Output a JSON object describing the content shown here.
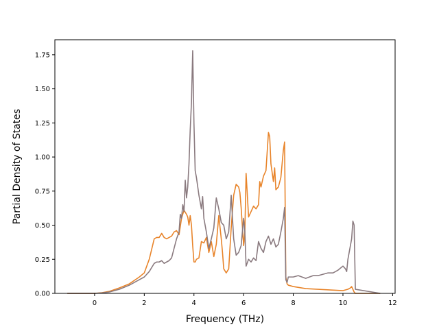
{
  "chart_data": {
    "type": "line",
    "title": "",
    "xlabel": "Frequency (THz)",
    "ylabel": "Partial Density of States",
    "xlim": [
      -1.6,
      12.1
    ],
    "ylim": [
      0,
      1.86
    ],
    "xticks": [
      0,
      2,
      4,
      6,
      8,
      10,
      12
    ],
    "xtick_labels": [
      "0",
      "2",
      "4",
      "6",
      "8",
      "10",
      "12"
    ],
    "yticks": [
      0.0,
      0.25,
      0.5,
      0.75,
      1.0,
      1.25,
      1.5,
      1.75
    ],
    "ytick_labels": [
      "0.00",
      "0.25",
      "0.50",
      "0.75",
      "1.00",
      "1.25",
      "1.50",
      "1.75"
    ],
    "grid": false,
    "legend": "none",
    "series": [
      {
        "color": "#e8842a",
        "x": [
          -1.1,
          0,
          0.3,
          0.6,
          1.0,
          1.4,
          1.8,
          2.0,
          2.2,
          2.4,
          2.5,
          2.6,
          2.7,
          2.8,
          2.9,
          3.0,
          3.1,
          3.2,
          3.3,
          3.4,
          3.5,
          3.6,
          3.7,
          3.75,
          3.8,
          3.85,
          3.9,
          3.95,
          4.0,
          4.05,
          4.1,
          4.2,
          4.3,
          4.4,
          4.5,
          4.6,
          4.7,
          4.8,
          4.9,
          5.0,
          5.1,
          5.15,
          5.2,
          5.3,
          5.4,
          5.5,
          5.6,
          5.7,
          5.8,
          5.85,
          5.9,
          6.0,
          6.05,
          6.1,
          6.2,
          6.3,
          6.4,
          6.5,
          6.6,
          6.65,
          6.7,
          6.8,
          6.9,
          7.0,
          7.05,
          7.1,
          7.2,
          7.25,
          7.3,
          7.35,
          7.4,
          7.5,
          7.6,
          7.65,
          7.7,
          7.75,
          7.8,
          8.0,
          8.5,
          9.0,
          9.5,
          10.0,
          10.2,
          10.3,
          10.35,
          10.4,
          10.45,
          10.5,
          11.5
        ],
        "y": [
          0,
          0,
          0.005,
          0.015,
          0.04,
          0.07,
          0.12,
          0.15,
          0.25,
          0.4,
          0.41,
          0.41,
          0.44,
          0.41,
          0.4,
          0.41,
          0.42,
          0.45,
          0.46,
          0.43,
          0.55,
          0.61,
          0.58,
          0.56,
          0.5,
          0.57,
          0.5,
          0.35,
          0.23,
          0.23,
          0.25,
          0.26,
          0.38,
          0.37,
          0.41,
          0.3,
          0.38,
          0.27,
          0.36,
          0.57,
          0.4,
          0.3,
          0.18,
          0.15,
          0.18,
          0.48,
          0.72,
          0.8,
          0.78,
          0.74,
          0.63,
          0.35,
          0.45,
          0.88,
          0.56,
          0.6,
          0.64,
          0.62,
          0.65,
          0.82,
          0.78,
          0.86,
          0.9,
          1.18,
          1.15,
          0.95,
          0.82,
          0.92,
          0.76,
          0.77,
          0.78,
          0.85,
          1.05,
          1.11,
          0.12,
          0.07,
          0.06,
          0.05,
          0.035,
          0.03,
          0.025,
          0.02,
          0.03,
          0.04,
          0.05,
          0.03,
          0.01,
          0,
          0
        ]
      },
      {
        "color": "#8a7a7f",
        "x": [
          -1.1,
          0,
          0.3,
          0.6,
          1.0,
          1.4,
          1.8,
          2.0,
          2.2,
          2.4,
          2.5,
          2.6,
          2.7,
          2.8,
          2.9,
          3.0,
          3.1,
          3.2,
          3.3,
          3.4,
          3.45,
          3.5,
          3.55,
          3.6,
          3.65,
          3.7,
          3.75,
          3.8,
          3.85,
          3.9,
          3.95,
          4.0,
          4.05,
          4.1,
          4.2,
          4.3,
          4.35,
          4.4,
          4.5,
          4.6,
          4.7,
          4.8,
          4.9,
          5.0,
          5.1,
          5.2,
          5.3,
          5.4,
          5.5,
          5.6,
          5.7,
          5.8,
          5.9,
          6.0,
          6.05,
          6.1,
          6.2,
          6.3,
          6.4,
          6.5,
          6.6,
          6.7,
          6.8,
          6.9,
          7.0,
          7.1,
          7.2,
          7.3,
          7.4,
          7.5,
          7.6,
          7.65,
          7.7,
          7.75,
          7.8,
          8.0,
          8.2,
          8.5,
          8.8,
          9.0,
          9.2,
          9.4,
          9.6,
          9.8,
          10.0,
          10.1,
          10.15,
          10.2,
          10.25,
          10.3,
          10.35,
          10.4,
          10.45,
          10.5,
          11.5
        ],
        "y": [
          0,
          0,
          0.003,
          0.01,
          0.03,
          0.06,
          0.1,
          0.12,
          0.16,
          0.22,
          0.23,
          0.23,
          0.24,
          0.22,
          0.23,
          0.24,
          0.26,
          0.33,
          0.4,
          0.45,
          0.58,
          0.55,
          0.65,
          0.6,
          0.83,
          0.7,
          0.78,
          0.95,
          1.2,
          1.4,
          1.78,
          1.25,
          0.9,
          0.85,
          0.72,
          0.62,
          0.71,
          0.55,
          0.45,
          0.33,
          0.4,
          0.48,
          0.7,
          0.62,
          0.52,
          0.5,
          0.4,
          0.45,
          0.72,
          0.4,
          0.28,
          0.3,
          0.35,
          0.55,
          0.45,
          0.2,
          0.25,
          0.23,
          0.26,
          0.24,
          0.38,
          0.33,
          0.3,
          0.38,
          0.42,
          0.36,
          0.4,
          0.34,
          0.36,
          0.45,
          0.55,
          0.63,
          0.1,
          0.08,
          0.12,
          0.12,
          0.13,
          0.11,
          0.13,
          0.13,
          0.14,
          0.15,
          0.15,
          0.17,
          0.2,
          0.18,
          0.16,
          0.25,
          0.3,
          0.35,
          0.4,
          0.53,
          0.5,
          0.03,
          0
        ]
      }
    ]
  }
}
